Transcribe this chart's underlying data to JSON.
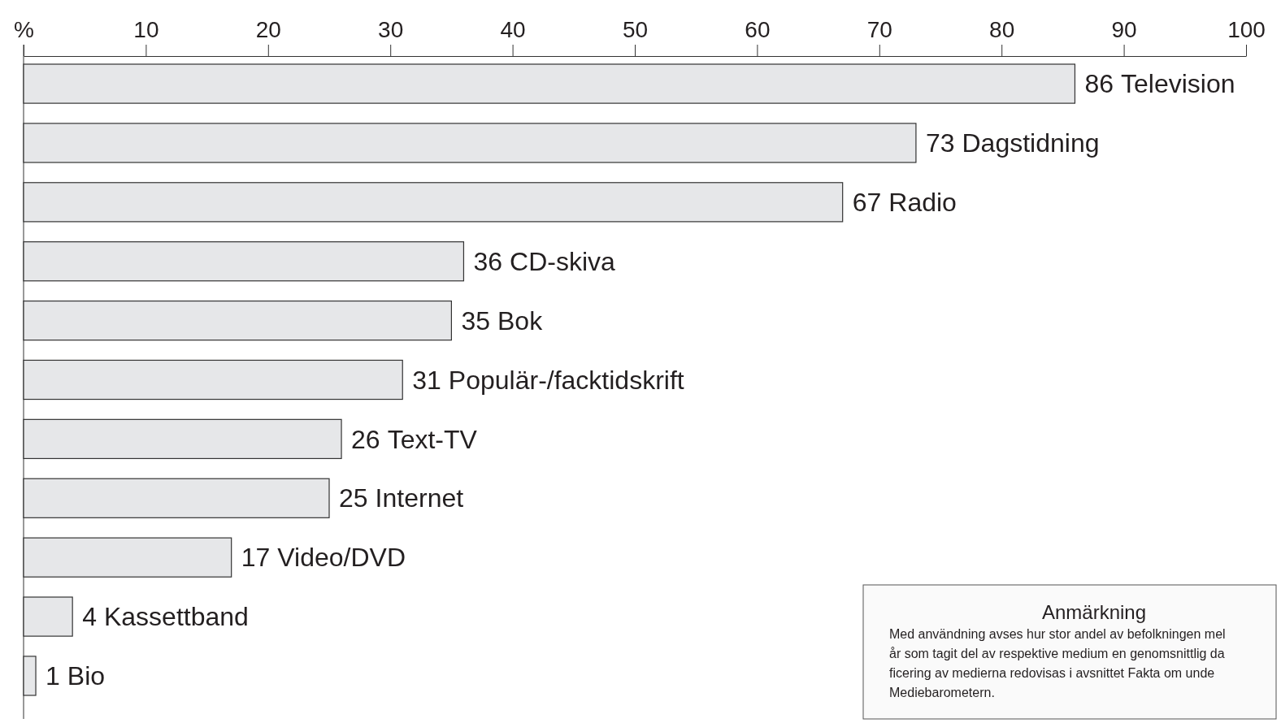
{
  "chart_data": {
    "type": "bar",
    "orientation": "horizontal",
    "categories": [
      "Television",
      "Dagstidning",
      "Radio",
      "CD-skiva",
      "Bok",
      "Populär-/facktidskrift",
      "Text-TV",
      "Internet",
      "Video/DVD",
      "Kassettband",
      "Bio"
    ],
    "values": [
      86,
      73,
      67,
      36,
      35,
      31,
      26,
      25,
      17,
      4,
      1
    ],
    "color": "#e6e7e9",
    "xlim": [
      0,
      100
    ],
    "xticks": [
      {
        "value": 0,
        "label": "%"
      },
      10,
      20,
      30,
      40,
      50,
      60,
      70,
      80,
      90,
      100
    ],
    "data_labels": true,
    "annotations": [
      "Anmärkning",
      "Med användning avses hur stor andel av befolkningen mel",
      "år som tagit del av respektive medium en genomsnittlig da",
      "ficering av medierna redovisas i avsnittet Fakta om unde",
      "Mediebarometern."
    ]
  }
}
